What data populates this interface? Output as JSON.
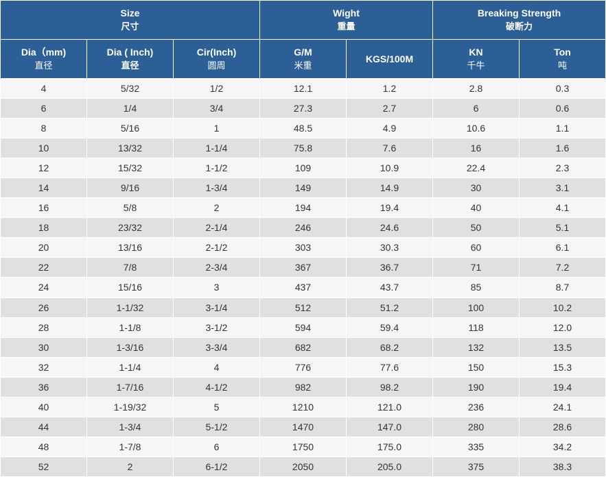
{
  "header": {
    "groups": [
      {
        "title": "Size",
        "subtitle": "尺寸",
        "span": 3
      },
      {
        "title": "Wight",
        "subtitle": "重量",
        "span": 2
      },
      {
        "title": "Breaking Strength",
        "subtitle": "破断力",
        "span": 2
      }
    ],
    "columns": [
      {
        "title": "Dia（mm)",
        "subtitle": "直径"
      },
      {
        "title": "Dia ( Inch)",
        "subtitle": "直径"
      },
      {
        "title": "Cir(Inch)",
        "subtitle": "圆周"
      },
      {
        "title": "G/M",
        "subtitle": "米重"
      },
      {
        "title": "KGS/100M"
      },
      {
        "title": "KN",
        "subtitle": "千牛"
      },
      {
        "title": "Ton",
        "subtitle": "吨"
      }
    ]
  },
  "table": {
    "rows": [
      [
        "4",
        "5/32",
        "1/2",
        "12.1",
        "1.2",
        "2.8",
        "0.3"
      ],
      [
        "6",
        "1/4",
        "3/4",
        "27.3",
        "2.7",
        "6",
        "0.6"
      ],
      [
        "8",
        "5/16",
        "1",
        "48.5",
        "4.9",
        "10.6",
        "1.1"
      ],
      [
        "10",
        "13/32",
        "1-1/4",
        "75.8",
        "7.6",
        "16",
        "1.6"
      ],
      [
        "12",
        "15/32",
        "1-1/2",
        "109",
        "10.9",
        "22.4",
        "2.3"
      ],
      [
        "14",
        "9/16",
        "1-3/4",
        "149",
        "14.9",
        "30",
        "3.1"
      ],
      [
        "16",
        "5/8",
        "2",
        "194",
        "19.4",
        "40",
        "4.1"
      ],
      [
        "18",
        "23/32",
        "2-1/4",
        "246",
        "24.6",
        "50",
        "5.1"
      ],
      [
        "20",
        "13/16",
        "2-1/2",
        "303",
        "30.3",
        "60",
        "6.1"
      ],
      [
        "22",
        "7/8",
        "2-3/4",
        "367",
        "36.7",
        "71",
        "7.2"
      ],
      [
        "24",
        "15/16",
        "3",
        "437",
        "43.7",
        "85",
        "8.7"
      ],
      [
        "26",
        "1-1/32",
        "3-1/4",
        "512",
        "51.2",
        "100",
        "10.2"
      ],
      [
        "28",
        "1-1/8",
        "3-1/2",
        "594",
        "59.4",
        "118",
        "12.0"
      ],
      [
        "30",
        "1-3/16",
        "3-3/4",
        "682",
        "68.2",
        "132",
        "13.5"
      ],
      [
        "32",
        "1-1/4",
        "4",
        "776",
        "77.6",
        "150",
        "15.3"
      ],
      [
        "36",
        "1-7/16",
        "4-1/2",
        "982",
        "98.2",
        "190",
        "19.4"
      ],
      [
        "40",
        "1-19/32",
        "5",
        "1210",
        "121.0",
        "236",
        "24.1"
      ],
      [
        "44",
        "1-3/4",
        "5-1/2",
        "1470",
        "147.0",
        "280",
        "28.6"
      ],
      [
        "48",
        "1-7/8",
        "6",
        "1750",
        "175.0",
        "335",
        "34.2"
      ],
      [
        "52",
        "2",
        "6-1/2",
        "2050",
        "205.0",
        "375",
        "38.3"
      ]
    ]
  }
}
